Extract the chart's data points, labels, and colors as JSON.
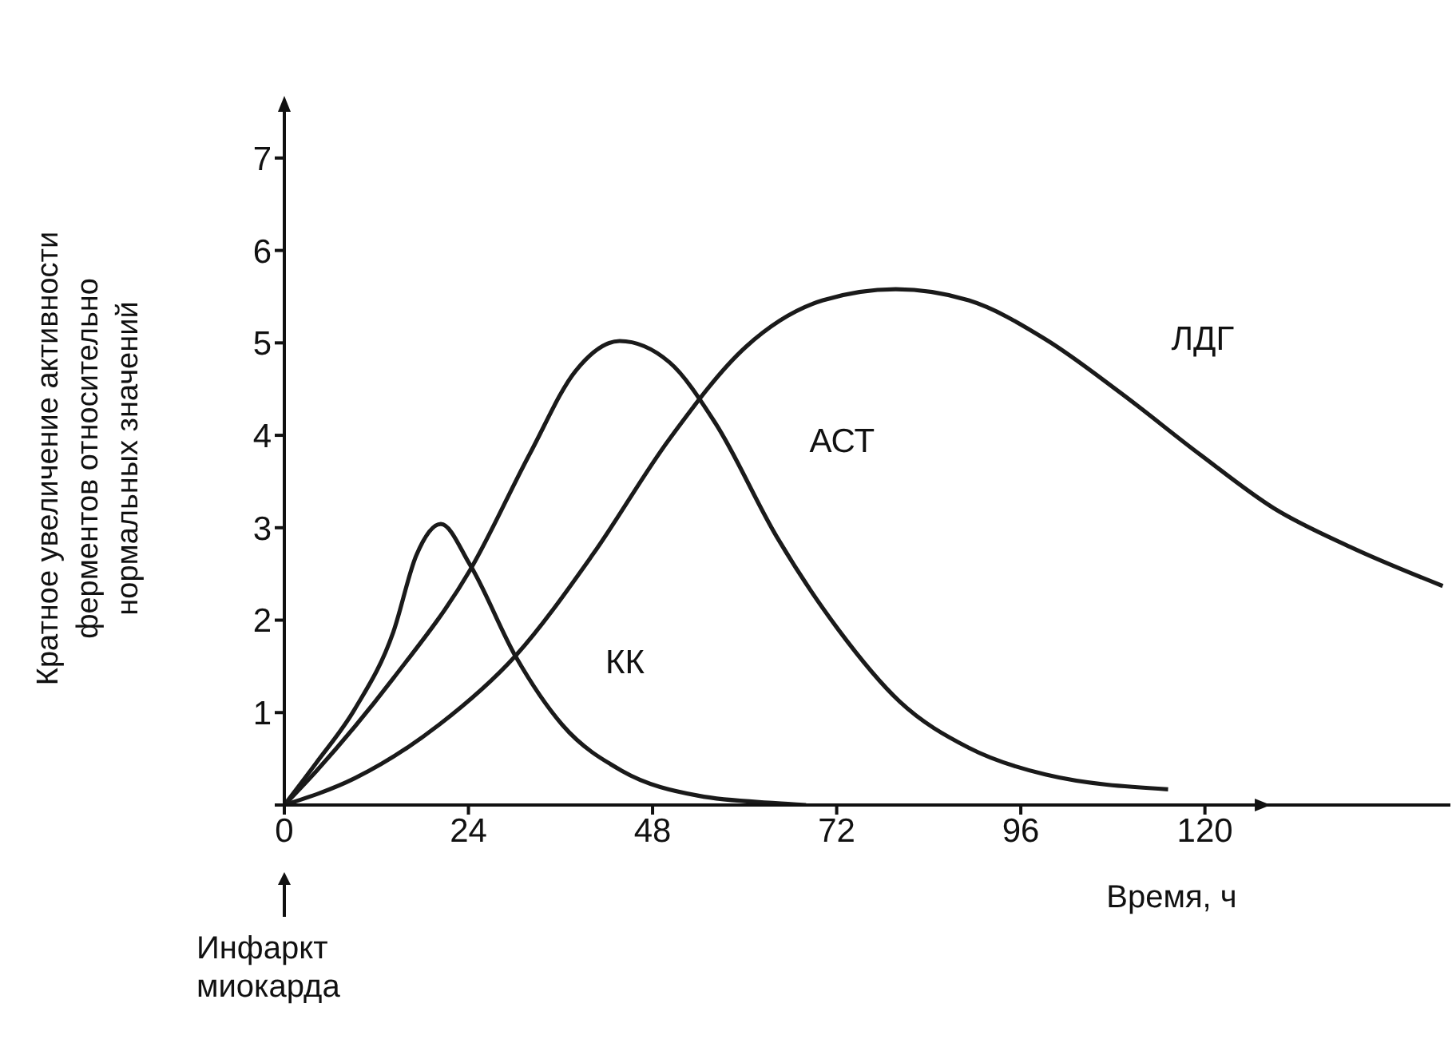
{
  "chart_data": {
    "type": "line",
    "ylabel": "Кратное увеличение активности\nферментов относительно\nнормальных значений",
    "xlabel": "Время, ч",
    "annotations": [
      "Инфаркт\nмиокарда"
    ],
    "xlim": [
      0,
      152
    ],
    "ylim": [
      0,
      7.5
    ],
    "xticks": [
      0,
      24,
      48,
      72,
      96,
      120
    ],
    "yticks": [
      {
        "value": 0,
        "label": null
      },
      1,
      2,
      3,
      4,
      5,
      6,
      7
    ],
    "grid": false,
    "legend": false,
    "marker": "none",
    "line_style": "solid",
    "series": [
      {
        "name": "КК",
        "color": "#1a1a1a",
        "x": [
          0,
          4.2,
          9.2,
          14.2,
          17.2,
          20.4,
          24.2,
          30.2,
          36.2,
          44,
          54,
          64,
          68
        ],
        "values": [
          0,
          0.46,
          1.04,
          1.87,
          2.7,
          3.04,
          2.6,
          1.6,
          0.87,
          0.37,
          0.1,
          0.02,
          0
        ]
      },
      {
        "name": "АСТ",
        "color": "#1a1a1a",
        "x": [
          0,
          4.2,
          14.2,
          24.2,
          32,
          38,
          43.7,
          50.2,
          56.2,
          64.2,
          72.2,
          80.2,
          89.2,
          99.2,
          115.2
        ],
        "values": [
          0,
          0.37,
          1.37,
          2.54,
          3.8,
          4.7,
          5.02,
          4.79,
          4.13,
          2.9,
          1.9,
          1.12,
          0.62,
          0.33,
          0.17
        ]
      },
      {
        "name": "ЛДГ",
        "color": "#1a1a1a",
        "x": [
          0,
          9.2,
          20.2,
          30.2,
          40.2,
          50.2,
          60.2,
          70.2,
          79.7,
          89.2,
          99.2,
          109,
          119.4,
          129,
          139,
          151
        ],
        "values": [
          0,
          0.29,
          0.87,
          1.62,
          2.71,
          3.96,
          4.96,
          5.46,
          5.58,
          5.46,
          5.04,
          4.46,
          3.79,
          3.21,
          2.79,
          2.37
        ]
      }
    ]
  }
}
